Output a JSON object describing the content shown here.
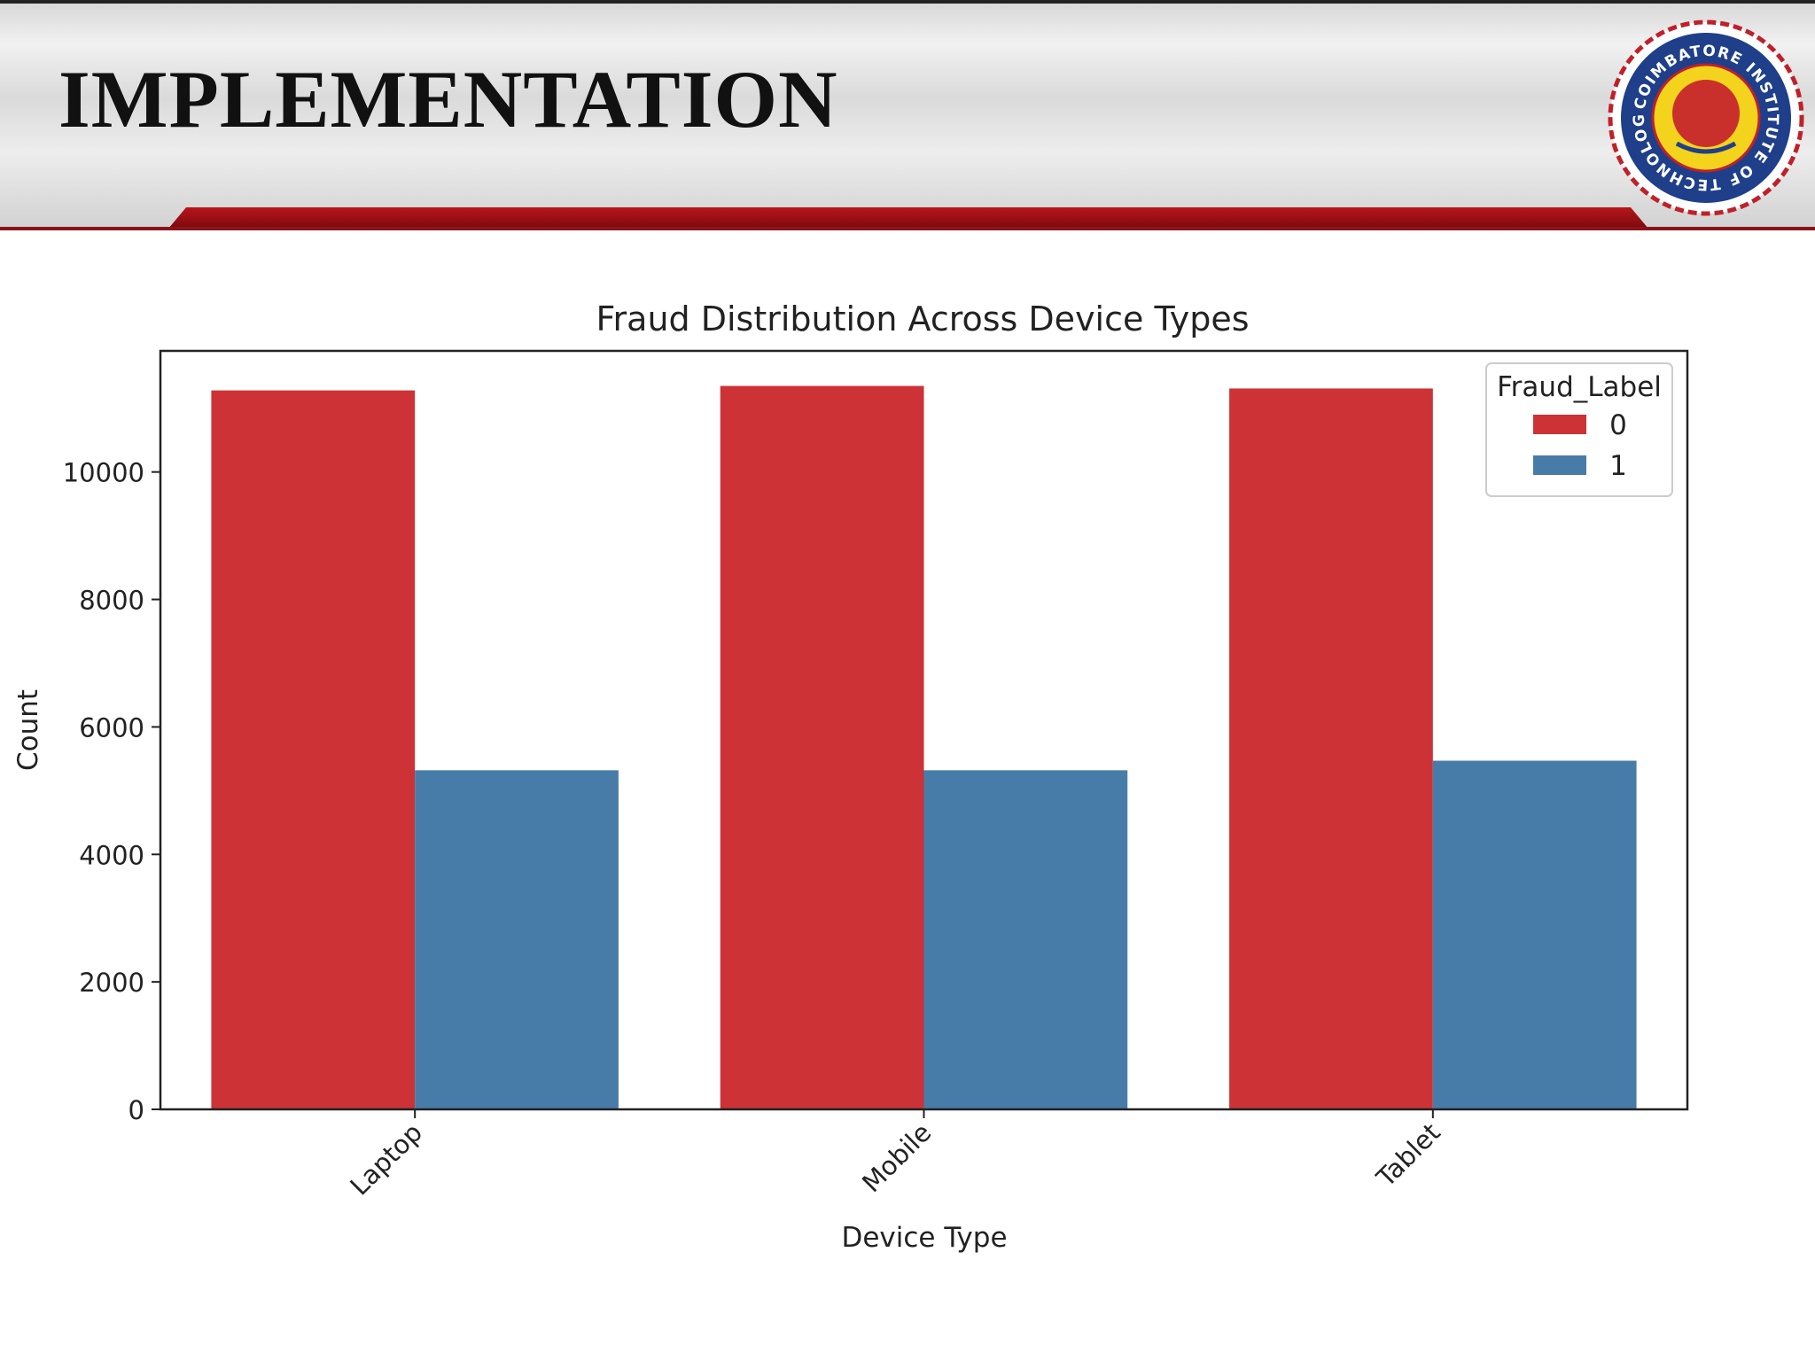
{
  "slide": {
    "title": "IMPLEMENTATION"
  },
  "logo": {
    "ring_text": "COIMBATORE INSTITUTE OF TECHNOLOGY",
    "colors": {
      "ring": "#1f3f8a",
      "outer": "#c0202a",
      "center": "#f4d31c",
      "core": "#c9302c"
    }
  },
  "chart_data": {
    "type": "bar",
    "title": "Fraud Distribution Across Device Types",
    "xlabel": "Device Type",
    "ylabel": "Count",
    "categories": [
      "Laptop",
      "Mobile",
      "Tablet"
    ],
    "series": [
      {
        "name": "0",
        "values": [
          11280,
          11350,
          11310
        ],
        "color": "#cc3236"
      },
      {
        "name": "1",
        "values": [
          5320,
          5320,
          5470
        ],
        "color": "#477ca8"
      }
    ],
    "ylim": [
      0,
      11900
    ],
    "yticks": [
      0,
      2000,
      4000,
      6000,
      8000,
      10000
    ],
    "legend": {
      "title": "Fraud_Label",
      "position": "top-right"
    },
    "grid": false,
    "xtick_rotation": -45
  }
}
